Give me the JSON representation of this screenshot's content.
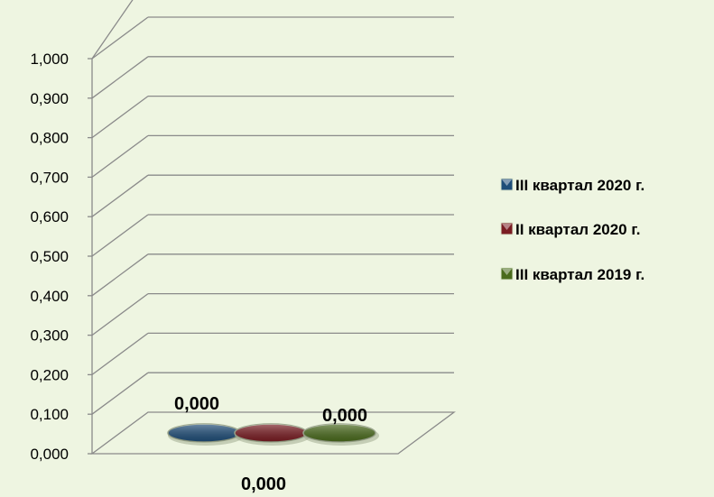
{
  "chart_data": {
    "type": "bar",
    "style": "3d-cylinder",
    "categories": [
      "0,000"
    ],
    "series": [
      {
        "name": "III квартал 2020 г.",
        "values": [
          0
        ],
        "label": "0,000",
        "color": "#1f4e79"
      },
      {
        "name": "II квартал 2020 г.",
        "values": [
          0
        ],
        "label": "0,000",
        "color": "#7a1c22"
      },
      {
        "name": "III квартал 2019 г.",
        "values": [
          0
        ],
        "label": "0,000",
        "color": "#4a6b1c"
      }
    ],
    "ylim": [
      0,
      1
    ],
    "yticks": [
      "0,000",
      "0,100",
      "0,200",
      "0,300",
      "0,400",
      "0,500",
      "0,600",
      "0,700",
      "0,800",
      "0,900",
      "1,000"
    ],
    "grid": true,
    "legend": "right",
    "title": "",
    "xlabel": "",
    "ylabel": ""
  }
}
